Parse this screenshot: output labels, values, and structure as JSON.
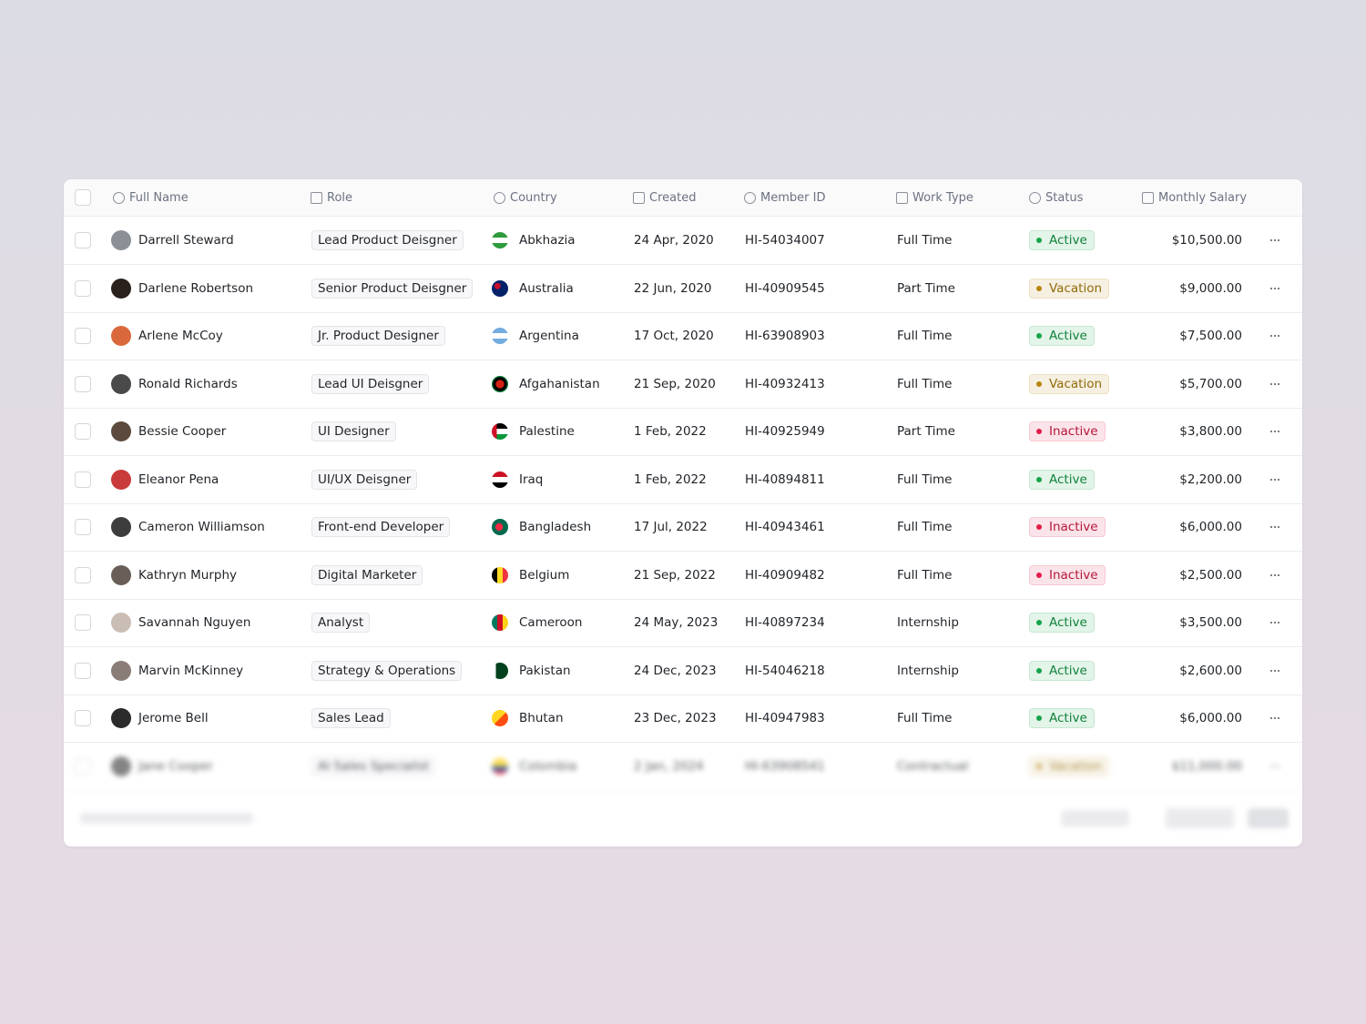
{
  "table": {
    "headers": [
      "Full Name",
      "Role",
      "Country",
      "Created",
      "Member ID",
      "Work Type",
      "Status",
      "Monthly Salary"
    ],
    "status_colors": {
      "Active": "#16a34a",
      "Vacation": "#b7860b",
      "Inactive": "#e11d48"
    },
    "rows": [
      [
        "Darrell Steward",
        "Lead Product Deisgner",
        "Abkhazia",
        "24 Apr, 2020",
        "HI-54034007",
        "Full Time",
        "Active",
        "$10,500.00"
      ],
      [
        "Darlene Robertson",
        "Senior Product Deisgner",
        "Australia",
        "22 Jun, 2020",
        "HI-40909545",
        "Part Time",
        "Vacation",
        "$9,000.00"
      ],
      [
        "Arlene McCoy",
        "Jr. Product Designer",
        "Argentina",
        "17 Oct, 2020",
        "HI-63908903",
        "Full Time",
        "Active",
        "$7,500.00"
      ],
      [
        "Ronald Richards",
        "Lead UI Deisgner",
        "Afgahanistan",
        "21 Sep, 2020",
        "HI-40932413",
        "Full Time",
        "Vacation",
        "$5,700.00"
      ],
      [
        "Bessie Cooper",
        "UI Designer",
        "Palestine",
        "1 Feb, 2022",
        "HI-40925949",
        "Part Time",
        "Inactive",
        "$3,800.00"
      ],
      [
        "Eleanor Pena",
        "UI/UX Deisgner",
        "Iraq",
        "1 Feb, 2022",
        "HI-40894811",
        "Full Time",
        "Active",
        "$2,200.00"
      ],
      [
        "Cameron Williamson",
        "Front-end Developer",
        "Bangladesh",
        "17 Jul, 2022",
        "HI-40943461",
        "Full Time",
        "Inactive",
        "$6,000.00"
      ],
      [
        "Kathryn Murphy",
        "Digital Marketer",
        "Belgium",
        "21 Sep, 2022",
        "HI-40909482",
        "Full Time",
        "Inactive",
        "$2,500.00"
      ],
      [
        "Savannah Nguyen",
        "Analyst",
        "Cameroon",
        "24 May, 2023",
        "HI-40897234",
        "Internship",
        "Active",
        "$3,500.00"
      ],
      [
        "Marvin McKinney",
        "Strategy & Operations",
        "Pakistan",
        "24 Dec, 2023",
        "HI-54046218",
        "Internship",
        "Active",
        "$2,600.00"
      ],
      [
        "Jerome Bell",
        "Sales Lead",
        "Bhutan",
        "23 Dec, 2023",
        "HI-40947983",
        "Full Time",
        "Active",
        "$6,000.00"
      ],
      [
        "Jane Cooper",
        "AI Sales Specialist",
        "Colombia",
        "2 Jan, 2024",
        "HI-63908541",
        "Contractual",
        "Vacation",
        "$11,000.00"
      ]
    ]
  }
}
